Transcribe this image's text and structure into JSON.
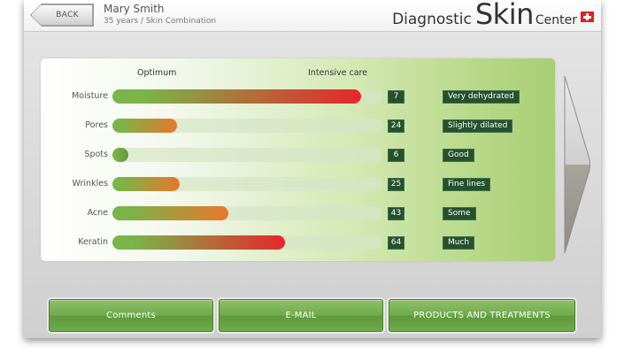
{
  "header": {
    "back_label": "BACK",
    "patient_name": "Mary Smith",
    "patient_info": "35 years / Skin Combination",
    "brand_word1": "Diagnostic",
    "brand_word2": "Skin",
    "brand_word3": "Center",
    "flag_icon": "swiss-flag-icon"
  },
  "columns": {
    "optimum": "Optimum",
    "intensive": "Intensive care"
  },
  "metrics": [
    {
      "label": "Moisture",
      "value": "7",
      "level": 0.92,
      "status": "Very dehydrated",
      "end_color": "#e8262b"
    },
    {
      "label": "Pores",
      "value": "24",
      "level": 0.24,
      "status": "Slightly dilated",
      "end_color": "#e8772b"
    },
    {
      "label": "Spots",
      "value": "6",
      "level": 0.06,
      "status": "Good",
      "end_color": "#5f9a3a"
    },
    {
      "label": "Wrinkles",
      "value": "25",
      "level": 0.25,
      "status": "Fine lines",
      "end_color": "#e8772b"
    },
    {
      "label": "Acne",
      "value": "43",
      "level": 0.43,
      "status": "Some",
      "end_color": "#e8772b"
    },
    {
      "label": "Keratin",
      "value": "64",
      "level": 0.64,
      "status": "Much",
      "end_color": "#e8262b"
    }
  ],
  "buttons": {
    "comments": "Comments",
    "email": "E-MAIL",
    "products": "PRODUCTS AND TREATMENTS"
  },
  "colors": {
    "accent_green": "#6faa4a",
    "badge_dark_green": "#25512e",
    "bar_start_green": "#79b548"
  },
  "icons": {
    "next": "chevron-right-icon"
  }
}
